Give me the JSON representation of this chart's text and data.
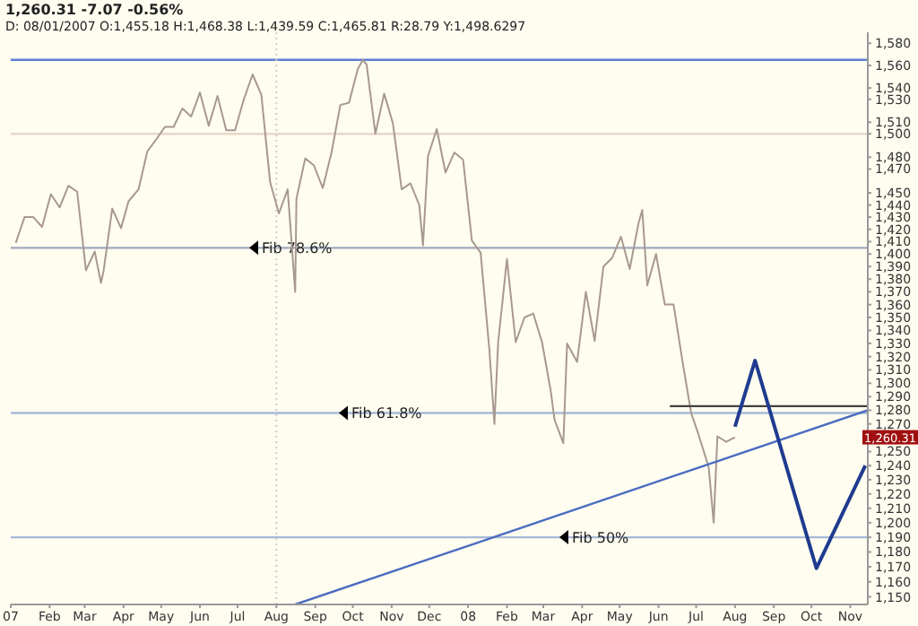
{
  "chart_data": {
    "type": "line",
    "title": "1,260.31 -7.07 -0.56%",
    "subtitle": "D: 08/01/2007 O:1,455.18 H:1,468.38 L:1,439.59 C:1,465.81 R:28.79 Y:1,498.6297",
    "log": "y",
    "grid": false,
    "legend": false,
    "marker": "none",
    "line_style": "solid",
    "xlim": [
      "2007-01-01",
      "2008-11-15"
    ],
    "xticks": [
      {
        "value": "2007-01-01",
        "label": "07"
      },
      {
        "value": "2007-02-01",
        "label": "Feb"
      },
      {
        "value": "2007-03-01",
        "label": "Mar"
      },
      {
        "value": "2007-04-01",
        "label": "Apr"
      },
      {
        "value": "2007-05-01",
        "label": "May"
      },
      {
        "value": "2007-06-01",
        "label": "Jun"
      },
      {
        "value": "2007-07-01",
        "label": "Jul"
      },
      {
        "value": "2007-08-01",
        "label": "Aug"
      },
      {
        "value": "2007-09-01",
        "label": "Sep"
      },
      {
        "value": "2007-10-01",
        "label": "Oct"
      },
      {
        "value": "2007-11-01",
        "label": "Nov"
      },
      {
        "value": "2007-12-01",
        "label": "Dec"
      },
      {
        "value": "2008-01-01",
        "label": "08"
      },
      {
        "value": "2008-02-01",
        "label": "Feb"
      },
      {
        "value": "2008-03-01",
        "label": "Mar"
      },
      {
        "value": "2008-04-01",
        "label": "Apr"
      },
      {
        "value": "2008-05-01",
        "label": "May"
      },
      {
        "value": "2008-06-01",
        "label": "Jun"
      },
      {
        "value": "2008-07-01",
        "label": "Jul"
      },
      {
        "value": "2008-08-01",
        "label": "Aug"
      },
      {
        "value": "2008-09-01",
        "label": "Sep"
      },
      {
        "value": "2008-10-01",
        "label": "Oct"
      },
      {
        "value": "2008-11-01",
        "label": "Nov"
      }
    ],
    "ylim": [
      1145,
      1590
    ],
    "yticks": [
      {
        "value": 1580,
        "label": "1,580"
      },
      {
        "value": 1560,
        "label": "1,560"
      },
      {
        "value": 1540,
        "label": "1,540"
      },
      {
        "value": 1530,
        "label": "1,530"
      },
      {
        "value": 1510,
        "label": "1,510"
      },
      {
        "value": 1500,
        "label": "1,500"
      },
      {
        "value": 1480,
        "label": "1,480"
      },
      {
        "value": 1470,
        "label": "1,470"
      },
      {
        "value": 1450,
        "label": "1,450"
      },
      {
        "value": 1440,
        "label": "1,440"
      },
      {
        "value": 1430,
        "label": "1,430"
      },
      {
        "value": 1420,
        "label": "1,420"
      },
      {
        "value": 1410,
        "label": "1,410"
      },
      {
        "value": 1400,
        "label": "1,400"
      },
      {
        "value": 1390,
        "label": "1,390"
      },
      {
        "value": 1380,
        "label": "1,380"
      },
      {
        "value": 1370,
        "label": "1,370"
      },
      {
        "value": 1360,
        "label": "1,360"
      },
      {
        "value": 1350,
        "label": "1,350"
      },
      {
        "value": 1340,
        "label": "1,340"
      },
      {
        "value": 1330,
        "label": "1,330"
      },
      {
        "value": 1320,
        "label": "1,320"
      },
      {
        "value": 1310,
        "label": "1,310"
      },
      {
        "value": 1300,
        "label": "1,300"
      },
      {
        "value": 1290,
        "label": "1,290"
      },
      {
        "value": 1280,
        "label": "1,280"
      },
      {
        "value": 1270,
        "label": "1,270"
      },
      {
        "value": 1250,
        "label": "1,250"
      },
      {
        "value": 1240,
        "label": "1,240"
      },
      {
        "value": 1230,
        "label": "1,230"
      },
      {
        "value": 1220,
        "label": "1,220"
      },
      {
        "value": 1210,
        "label": "1,210"
      },
      {
        "value": 1200,
        "label": "1,200"
      },
      {
        "value": 1190,
        "label": "1,190"
      },
      {
        "value": 1180,
        "label": "1,180"
      },
      {
        "value": 1170,
        "label": "1,170"
      },
      {
        "value": 1160,
        "label": "1,160"
      },
      {
        "value": 1150,
        "label": "1,150"
      }
    ],
    "series": [
      {
        "color": "#a89890",
        "x": [
          "2007-01-05",
          "2007-01-12",
          "2007-01-19",
          "2007-01-26",
          "2007-02-02",
          "2007-02-09",
          "2007-02-16",
          "2007-02-23",
          "2007-03-02",
          "2007-03-09",
          "2007-03-14",
          "2007-03-16",
          "2007-03-23",
          "2007-03-30",
          "2007-04-05",
          "2007-04-13",
          "2007-04-20",
          "2007-04-27",
          "2007-05-04",
          "2007-05-11",
          "2007-05-18",
          "2007-05-25",
          "2007-06-01",
          "2007-06-08",
          "2007-06-15",
          "2007-06-22",
          "2007-06-29",
          "2007-07-06",
          "2007-07-13",
          "2007-07-20",
          "2007-07-27",
          "2007-08-03",
          "2007-08-10",
          "2007-08-16",
          "2007-08-17",
          "2007-08-24",
          "2007-08-31",
          "2007-09-07",
          "2007-09-14",
          "2007-09-21",
          "2007-09-28",
          "2007-10-05",
          "2007-10-09",
          "2007-10-12",
          "2007-10-19",
          "2007-10-26",
          "2007-11-02",
          "2007-11-09",
          "2007-11-16",
          "2007-11-23",
          "2007-11-26",
          "2007-11-30",
          "2007-12-07",
          "2007-12-14",
          "2007-12-21",
          "2007-12-28",
          "2008-01-04",
          "2008-01-11",
          "2008-01-18",
          "2008-01-22",
          "2008-01-25",
          "2008-02-01",
          "2008-02-08",
          "2008-02-15",
          "2008-02-22",
          "2008-02-29",
          "2008-03-07",
          "2008-03-10",
          "2008-03-17",
          "2008-03-20",
          "2008-03-28",
          "2008-04-04",
          "2008-04-11",
          "2008-04-18",
          "2008-04-25",
          "2008-05-02",
          "2008-05-09",
          "2008-05-16",
          "2008-05-19",
          "2008-05-23",
          "2008-05-30",
          "2008-06-06",
          "2008-06-13",
          "2008-06-20",
          "2008-06-27",
          "2008-07-03",
          "2008-07-11",
          "2008-07-15",
          "2008-07-18",
          "2008-07-25",
          "2008-08-01"
        ],
        "values": [
          1409,
          1430,
          1430,
          1422,
          1449,
          1438,
          1456,
          1451,
          1387,
          1402,
          1377,
          1386,
          1437,
          1421,
          1443,
          1453,
          1485,
          1495,
          1506,
          1506,
          1522,
          1515,
          1536,
          1507,
          1533,
          1503,
          1503,
          1530,
          1552,
          1534,
          1459,
          1433,
          1453,
          1370,
          1445,
          1479,
          1473,
          1454,
          1484,
          1525,
          1527,
          1557,
          1565,
          1561,
          1500,
          1535,
          1509,
          1453,
          1458,
          1440,
          1407,
          1481,
          1504,
          1467,
          1484,
          1478,
          1411,
          1401,
          1325,
          1270,
          1331,
          1396,
          1331,
          1350,
          1353,
          1331,
          1294,
          1273,
          1256,
          1330,
          1316,
          1370,
          1332,
          1390,
          1397,
          1414,
          1388,
          1425,
          1436,
          1375,
          1400,
          1360,
          1360,
          1317,
          1278,
          1262,
          1239,
          1200,
          1261,
          1257,
          1260.31
        ]
      },
      {
        "color": "#4a6cc0",
        "x": [
          "2007-08-16",
          "2008-11-15"
        ],
        "values": [
          1145,
          1280
        ]
      },
      {
        "color": "#404040",
        "x": [
          "2008-06-10",
          "2008-11-15"
        ],
        "values": [
          1283,
          1283
        ]
      },
      {
        "color": "#1f3b8f",
        "x": [
          "2008-08-01",
          "2008-08-17",
          "2008-10-05",
          "2008-11-13"
        ],
        "values": [
          1268,
          1317,
          1169,
          1240
        ]
      }
    ],
    "ref_lines": [
      {
        "axis": "y",
        "value": 1565,
        "color": "#5b7fd0"
      },
      {
        "axis": "y",
        "value": 1500,
        "color": "#e8d8c8"
      },
      {
        "axis": "y",
        "value": 1405,
        "label": "Fib 78.6%",
        "color": "#a0a8c0"
      },
      {
        "axis": "y",
        "value": 1278,
        "label": "Fib 61.8%",
        "color": "#a8b8d8"
      },
      {
        "axis": "y",
        "value": 1190,
        "label": "Fib 50%",
        "color": "#a8b8d8"
      },
      {
        "axis": "x",
        "value": "2007-08-01",
        "color": "#cccccc",
        "line_style": "dotted"
      }
    ],
    "annotations": [
      "1,260.31"
    ]
  }
}
